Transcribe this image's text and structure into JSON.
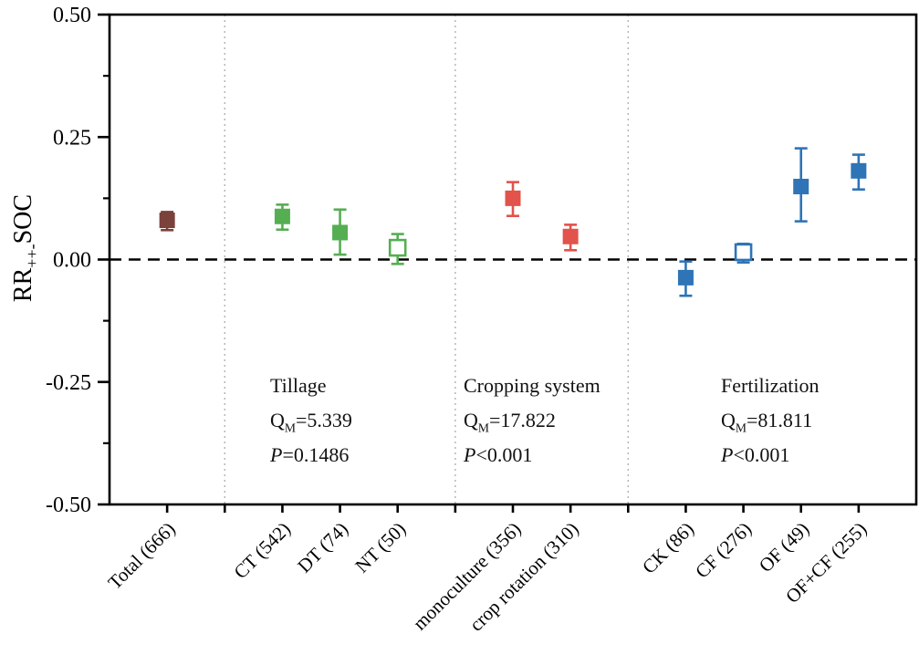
{
  "chart_data": {
    "type": "scatter",
    "subtype": "point-range-forest-plot",
    "title": "",
    "xlabel": "",
    "ylabel": {
      "prefix": "RR",
      "subscript": "++-",
      "suffix": "SOC"
    },
    "ylim": [
      -0.5,
      0.5
    ],
    "yticks": [
      {
        "value": 0.5,
        "label": "0.50"
      },
      {
        "value": 0.25,
        "label": "0.25"
      },
      {
        "value": 0.0,
        "label": "0.00"
      },
      {
        "value": -0.25,
        "label": "-0.25"
      },
      {
        "value": -0.5,
        "label": "-0.50"
      }
    ],
    "yticks_minor": [
      0.375,
      0.125,
      -0.125,
      -0.375
    ],
    "zero_line": 0,
    "grid": false,
    "legend": "none",
    "xlim": [
      0,
      14
    ],
    "xticks": [
      1,
      2,
      3,
      4,
      5,
      6,
      7,
      8,
      9,
      10,
      11,
      12,
      13
    ],
    "separators": [
      2,
      6,
      9
    ],
    "colors": {
      "overall": "#7b413b",
      "tillage": "#55ae52",
      "cropping": "#e1534b",
      "fertilization": "#2e74b6"
    },
    "points": [
      {
        "label": "Total (666)",
        "group": "overall",
        "x": 1,
        "mean": 0.08,
        "lo": 0.06,
        "hi": 0.097,
        "filled": true
      },
      {
        "label": "CT (542)",
        "group": "tillage",
        "x": 3,
        "mean": 0.088,
        "lo": 0.061,
        "hi": 0.112,
        "filled": true
      },
      {
        "label": "DT (74)",
        "group": "tillage",
        "x": 4,
        "mean": 0.055,
        "lo": 0.01,
        "hi": 0.102,
        "filled": true
      },
      {
        "label": "NT (50)",
        "group": "tillage",
        "x": 5,
        "mean": 0.024,
        "lo": -0.009,
        "hi": 0.052,
        "filled": false
      },
      {
        "label": "monoculture (356)",
        "group": "cropping",
        "x": 7,
        "mean": 0.125,
        "lo": 0.089,
        "hi": 0.158,
        "filled": true
      },
      {
        "label": "crop rotation (310)",
        "group": "cropping",
        "x": 8,
        "mean": 0.047,
        "lo": 0.019,
        "hi": 0.071,
        "filled": true
      },
      {
        "label": "CK (86)",
        "group": "fertilization",
        "x": 10,
        "mean": -0.037,
        "lo": -0.074,
        "hi": -0.004,
        "filled": true
      },
      {
        "label": "CF (276)",
        "group": "fertilization",
        "x": 11,
        "mean": 0.015,
        "lo": -0.006,
        "hi": 0.032,
        "filled": false
      },
      {
        "label": "OF (49)",
        "group": "fertilization",
        "x": 12,
        "mean": 0.149,
        "lo": 0.078,
        "hi": 0.227,
        "filled": true
      },
      {
        "label": "OF+CF (255)",
        "group": "fertilization",
        "x": 13,
        "mean": 0.181,
        "lo": 0.143,
        "hi": 0.214,
        "filled": true
      }
    ],
    "annotations": [
      {
        "title": "Tillage",
        "q_main": "Q",
        "q_sub": "M",
        "q_rest": "=5.339",
        "p_main": "P",
        "p_rest": "=0.1486"
      },
      {
        "title": "Cropping system",
        "q_main": "Q",
        "q_sub": "M",
        "q_rest": "=17.822",
        "p_main": "P",
        "p_rest": "<0.001"
      },
      {
        "title": "Fertilization",
        "q_main": "Q",
        "q_sub": "M",
        "q_rest": "=81.811",
        "p_main": "P",
        "p_rest": "<0.001"
      }
    ]
  }
}
